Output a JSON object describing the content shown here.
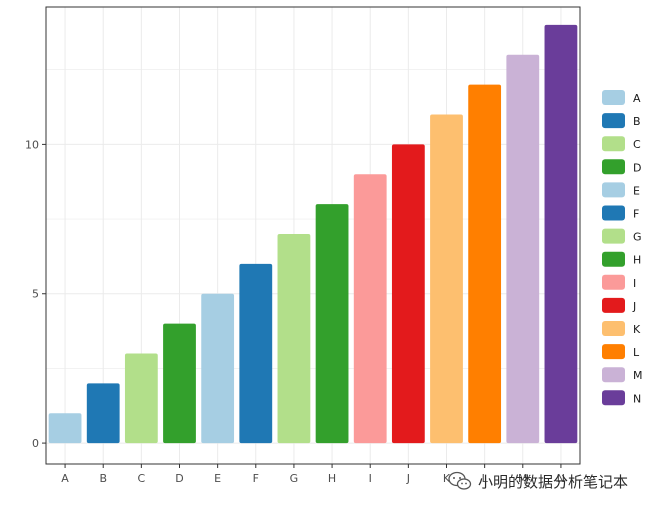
{
  "chart_data": {
    "type": "bar",
    "categories": [
      "A",
      "B",
      "C",
      "D",
      "E",
      "F",
      "G",
      "H",
      "I",
      "J",
      "K",
      "L",
      "M",
      "N"
    ],
    "values": [
      1,
      2,
      3,
      4,
      5,
      6,
      7,
      8,
      9,
      10,
      11,
      12,
      13,
      14
    ],
    "colors": [
      "#A6CEE3",
      "#1F78B4",
      "#B2DF8A",
      "#33A02C",
      "#A6CEE3",
      "#1F78B4",
      "#B2DF8A",
      "#33A02C",
      "#FB9A99",
      "#E31A1C",
      "#FDBF6F",
      "#FF7F00",
      "#CAB2D6",
      "#6A3D9A"
    ],
    "ylim": [
      -0.7,
      14.6
    ],
    "yticks": [
      0,
      5,
      10
    ],
    "grid": true,
    "legend": {
      "position": "right",
      "entries": [
        "A",
        "B",
        "C",
        "D",
        "E",
        "F",
        "G",
        "H",
        "I",
        "J",
        "K",
        "L",
        "M",
        "N"
      ]
    },
    "title": "",
    "xlabel": "",
    "ylabel": ""
  },
  "watermark": {
    "text": "小明的数据分析笔记本",
    "icon": "wechat-icon"
  }
}
